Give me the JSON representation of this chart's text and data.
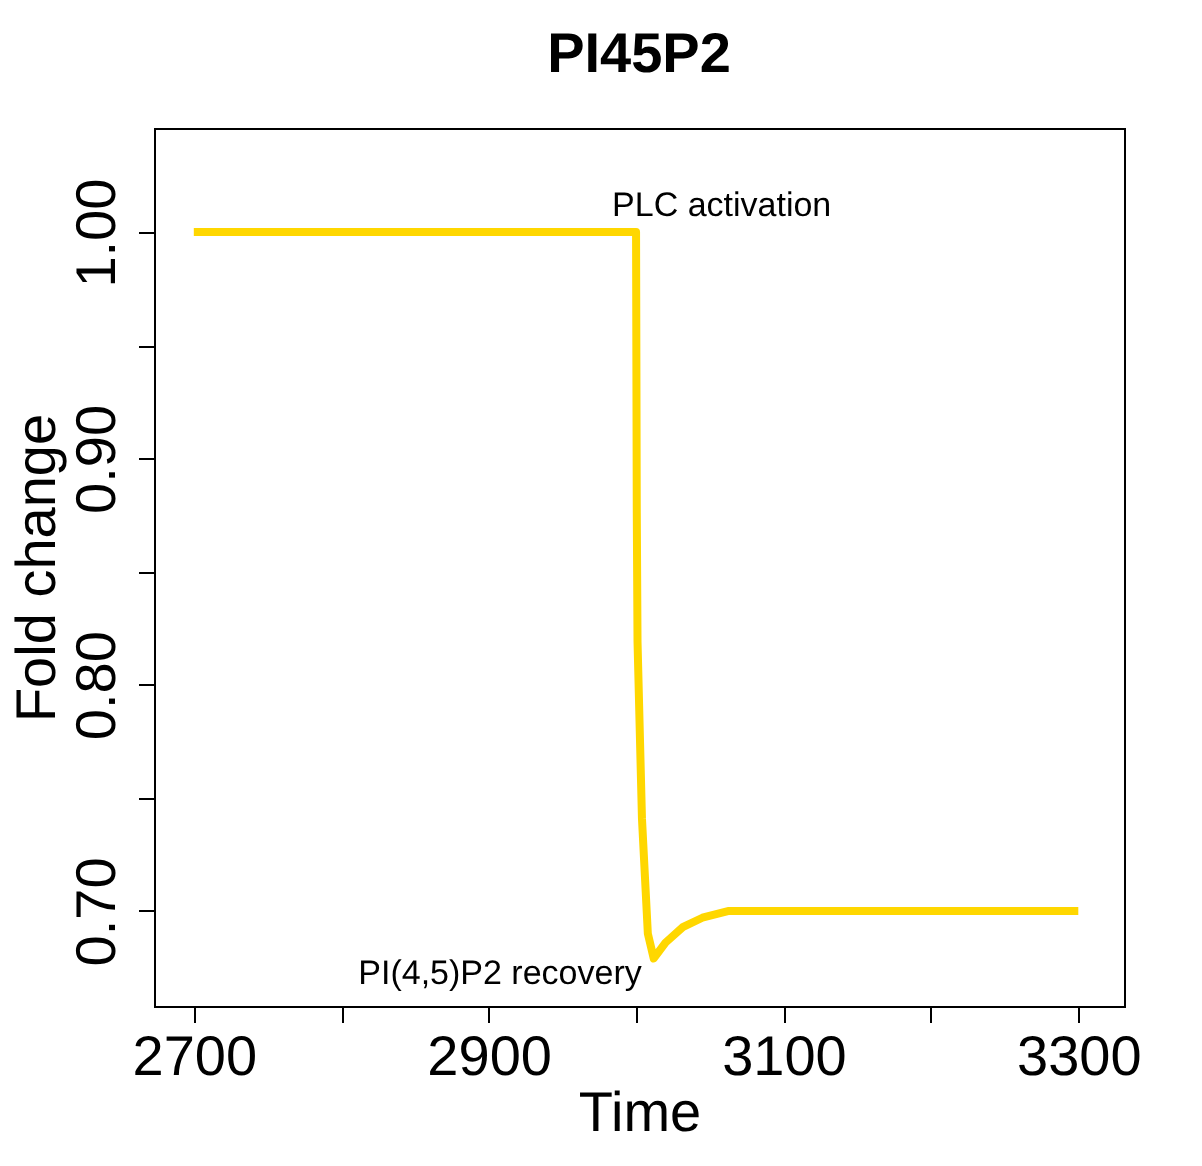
{
  "chart_data": {
    "type": "line",
    "title": "PI45P2",
    "xlabel": "Time",
    "ylabel": "Fold change",
    "series": [
      {
        "color": "#ffd700",
        "x": [
          2700,
          3000,
          3000.5,
          3001,
          3004,
          3008,
          3012,
          3020,
          3032,
          3045,
          3063,
          3100,
          3200,
          3300
        ],
        "values": [
          1.0,
          1.0,
          0.876,
          0.819,
          0.741,
          0.69,
          0.679,
          0.686,
          0.693,
          0.697,
          0.7,
          0.7,
          0.7,
          0.7
        ]
      }
    ],
    "annotations": [
      {
        "text": "PLC activation",
        "x": 3000,
        "y": 1.0
      },
      {
        "text": "PI(4,5)P2 recovery",
        "x": 3012,
        "y": 0.679
      }
    ],
    "xlim": [
      2673,
      3331
    ],
    "ylim": [
      0.658,
      1.046
    ],
    "xticks": [
      2700,
      {
        "value": 2800,
        "label": null
      },
      2900,
      {
        "value": 3000,
        "label": null
      },
      3100,
      {
        "value": 3200,
        "label": null
      },
      3300
    ],
    "yticks": [
      {
        "value": 0.7,
        "label": "0.70"
      },
      {
        "value": 0.75,
        "label": null
      },
      {
        "value": 0.8,
        "label": "0.80"
      },
      {
        "value": 0.85,
        "label": null
      },
      {
        "value": 0.9,
        "label": "0.90"
      },
      {
        "value": 0.95,
        "label": null
      },
      {
        "value": 1.0,
        "label": "1.00"
      }
    ],
    "grid": false,
    "marker": "none",
    "line_style": "solid"
  }
}
